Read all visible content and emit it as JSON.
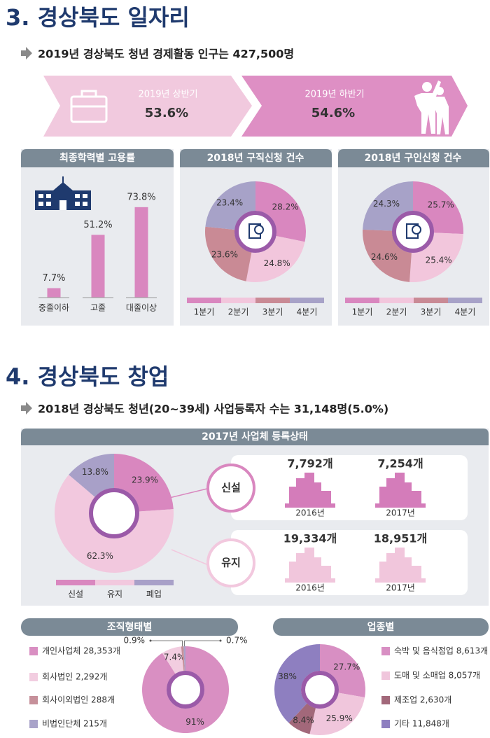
{
  "sections": [
    {
      "title": "3. 경상북도 일자리",
      "summary": "2019년 경상북도 청년 경제활동 인구는 427,500명"
    },
    {
      "title": "4. 경상북도 창업",
      "summary": "2018년 경상북도 청년(20~39세) 사업등록자 수는 31,148명(5.0%)"
    }
  ],
  "banner": [
    {
      "label": "2019년 상반기",
      "value": "53.6%"
    },
    {
      "label": "2019년 하반기",
      "value": "54.6%"
    }
  ],
  "registration": [
    {
      "label": "신설",
      "items": [
        {
          "count": "7,792개",
          "year": "2016년"
        },
        {
          "count": "7,254개",
          "year": "2017년"
        }
      ]
    },
    {
      "label": "유지",
      "items": [
        {
          "count": "19,334개",
          "year": "2016년"
        },
        {
          "count": "18,951개",
          "year": "2017년"
        }
      ]
    }
  ],
  "chart_data": [
    {
      "type": "bar",
      "title": "최종학력별 고용률",
      "categories": [
        "중졸이하",
        "고졸",
        "대졸이상"
      ],
      "values": [
        7.7,
        51.2,
        73.8
      ],
      "value_labels": [
        "7.7%",
        "51.2%",
        "73.8%"
      ],
      "color": "#d987bf"
    },
    {
      "type": "pie",
      "title": "2018년 구직신청 건수",
      "categories": [
        "1분기",
        "2분기",
        "3분기",
        "4분기"
      ],
      "values": [
        28.2,
        24.8,
        23.6,
        23.4
      ],
      "value_labels": [
        "28.2%",
        "24.8%",
        "23.6%",
        "23.4%"
      ],
      "colors": [
        "#d987bf",
        "#f2c6dc",
        "#c98a95",
        "#a7a2c8"
      ]
    },
    {
      "type": "pie",
      "title": "2018년 구인신청 건수",
      "categories": [
        "1분기",
        "2분기",
        "3분기",
        "4분기"
      ],
      "values": [
        25.7,
        25.4,
        24.6,
        24.3
      ],
      "value_labels": [
        "25.7%",
        "25.4%",
        "24.6%",
        "24.3%"
      ],
      "colors": [
        "#d987bf",
        "#f2c6dc",
        "#c98a95",
        "#a7a2c8"
      ]
    },
    {
      "type": "pie",
      "title": "2017년 사업체 등록상태",
      "categories": [
        "신설",
        "유지",
        "폐업"
      ],
      "values": [
        23.9,
        62.3,
        13.8
      ],
      "value_labels": [
        "23.9%",
        "62.3%",
        "13.8%"
      ],
      "colors": [
        "#d987bf",
        "#f2c8de",
        "#a8a0c8"
      ]
    },
    {
      "type": "pie",
      "title": "조직형태별",
      "categories": [
        "개인사업체 28,353개",
        "회사법인 2,292개",
        "회사이외법인 288개",
        "비법인단체 215개"
      ],
      "values": [
        91,
        7.4,
        0.9,
        0.7
      ],
      "value_labels": [
        "91%",
        "7.4%",
        "0.9%",
        "0.7%"
      ],
      "colors": [
        "#d98fc2",
        "#f2cde0",
        "#c6909a",
        "#a9a3c9"
      ]
    },
    {
      "type": "pie",
      "title": "업종별",
      "categories": [
        "숙박 및 음식점업 8,613개",
        "도매 및 소매업 8,057개",
        "제조업 2,630개",
        "기타 11,848개"
      ],
      "values": [
        27.7,
        25.9,
        8.4,
        38
      ],
      "value_labels": [
        "27.7%",
        "25.9%",
        "8.4%",
        "38%"
      ],
      "colors": [
        "#d88fc3",
        "#f0c6dc",
        "#a2687a",
        "#8e7fc0"
      ]
    }
  ]
}
